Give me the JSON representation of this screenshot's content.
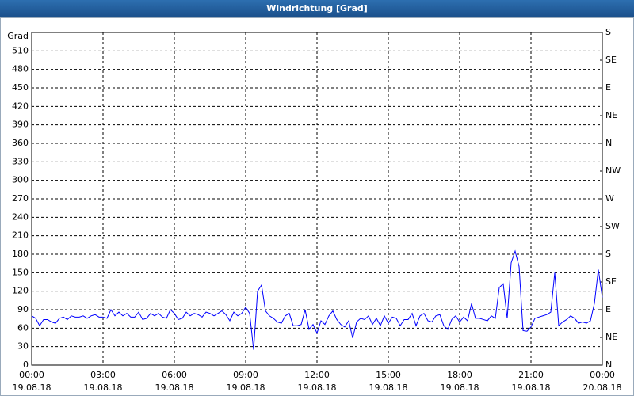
{
  "chart_data": {
    "type": "line",
    "title": "Windrichtung [Grad]",
    "y_label": "Grad",
    "color": "#0000ff",
    "grid": true,
    "x": [
      0,
      10,
      20,
      30,
      40,
      50,
      60,
      70,
      80,
      90,
      100,
      110,
      120,
      130,
      140,
      150,
      160,
      170,
      180,
      190,
      200,
      210,
      220,
      230,
      240,
      250,
      260,
      270,
      280,
      290,
      300,
      310,
      320,
      330,
      340,
      350,
      360,
      370,
      380,
      390,
      400,
      410,
      420,
      430,
      440,
      450,
      460,
      470,
      480,
      490,
      500,
      510,
      520,
      530,
      540,
      550,
      560,
      570,
      580,
      590,
      600,
      610,
      620,
      630,
      640,
      650,
      660,
      670,
      680,
      690,
      700,
      710,
      720,
      730,
      740,
      750,
      760,
      770,
      780,
      790,
      800,
      810,
      820,
      830,
      840,
      850,
      860,
      870,
      880,
      890,
      900,
      910,
      920,
      930,
      940,
      950,
      960,
      970,
      980,
      990,
      1000,
      1010,
      1020,
      1030,
      1040,
      1050,
      1060,
      1070,
      1080,
      1090,
      1100,
      1110,
      1120,
      1130,
      1140,
      1150,
      1160,
      1170,
      1180,
      1190,
      1200,
      1210,
      1220,
      1230,
      1240,
      1250,
      1260,
      1270,
      1280,
      1290,
      1300,
      1310,
      1320,
      1330,
      1340,
      1350,
      1360,
      1370,
      1380,
      1390,
      1400,
      1410,
      1420,
      1430,
      1440
    ],
    "values": [
      80,
      76,
      64,
      74,
      74,
      70,
      68,
      76,
      78,
      74,
      80,
      78,
      78,
      80,
      76,
      80,
      82,
      78,
      78,
      76,
      90,
      80,
      86,
      80,
      84,
      78,
      78,
      86,
      74,
      76,
      84,
      80,
      84,
      78,
      76,
      90,
      84,
      74,
      76,
      86,
      80,
      84,
      82,
      78,
      86,
      84,
      80,
      84,
      88,
      82,
      72,
      86,
      80,
      84,
      94,
      84,
      25,
      120,
      130,
      88,
      80,
      76,
      70,
      68,
      80,
      84,
      64,
      64,
      66,
      90,
      58,
      66,
      52,
      72,
      66,
      80,
      88,
      74,
      66,
      62,
      72,
      44,
      70,
      76,
      74,
      80,
      66,
      76,
      64,
      80,
      68,
      78,
      76,
      64,
      74,
      74,
      84,
      64,
      80,
      84,
      72,
      70,
      80,
      82,
      64,
      58,
      74,
      80,
      70,
      78,
      72,
      100,
      76,
      76,
      74,
      72,
      80,
      76,
      126,
      132,
      76,
      166,
      185,
      160,
      56,
      55,
      62,
      76,
      78,
      80,
      82,
      86,
      150,
      64,
      70,
      74,
      80,
      76,
      68,
      70,
      68,
      72,
      100,
      155,
      110
    ],
    "xlim": [
      0,
      1440
    ],
    "xticks": [
      {
        "value": 0,
        "label": "00:00"
      },
      {
        "value": 180,
        "label": "03:00"
      },
      {
        "value": 360,
        "label": "06:00"
      },
      {
        "value": 540,
        "label": "09:00"
      },
      {
        "value": 720,
        "label": "12:00"
      },
      {
        "value": 900,
        "label": "15:00"
      },
      {
        "value": 1080,
        "label": "18:00"
      },
      {
        "value": 1260,
        "label": "21:00"
      },
      {
        "value": 1440,
        "label": "00:00"
      }
    ],
    "xtick_dates": [
      "19.08.18",
      "19.08.18",
      "19.08.18",
      "19.08.18",
      "19.08.18",
      "19.08.18",
      "19.08.18",
      "19.08.18",
      "20.08.18"
    ],
    "ylim": [
      0,
      540
    ],
    "yticks": [
      0,
      30,
      60,
      90,
      120,
      150,
      180,
      210,
      240,
      270,
      300,
      330,
      360,
      390,
      420,
      450,
      480,
      510
    ],
    "y2lim": [
      0,
      540
    ],
    "y2ticks": [
      {
        "value": 0,
        "label": "N"
      },
      {
        "value": 45,
        "label": "NE"
      },
      {
        "value": 90,
        "label": "E"
      },
      {
        "value": 135,
        "label": "SE"
      },
      {
        "value": 180,
        "label": "S"
      },
      {
        "value": 225,
        "label": "SW"
      },
      {
        "value": 270,
        "label": "W"
      },
      {
        "value": 315,
        "label": "NW"
      },
      {
        "value": 360,
        "label": "N"
      },
      {
        "value": 405,
        "label": "NE"
      },
      {
        "value": 450,
        "label": "E"
      },
      {
        "value": 495,
        "label": "SE"
      },
      {
        "value": 540,
        "label": "S"
      }
    ]
  }
}
